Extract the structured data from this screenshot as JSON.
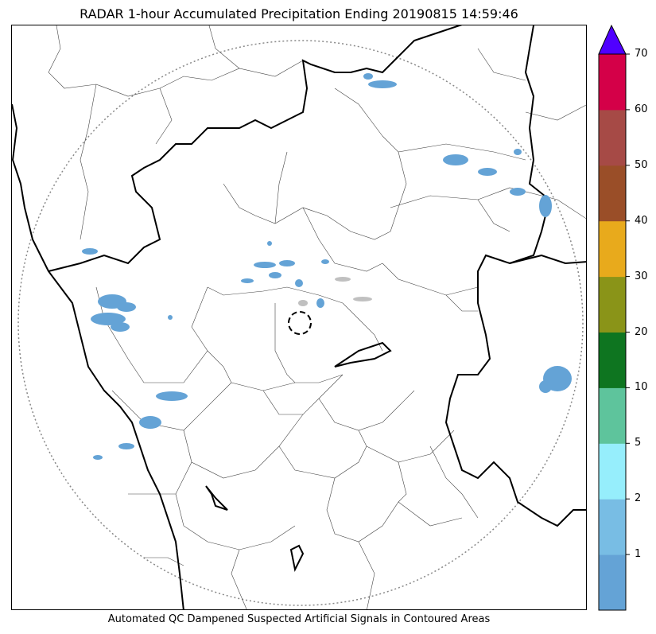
{
  "title": "RADAR 1-hour Accumulated Precipitation Ending 20190815 14:59:46",
  "footer": "Automated QC Dampened Suspected Artificial Signals in Contoured Areas",
  "colorbar": {
    "labels": [
      "1",
      "2",
      "5",
      "10",
      "20",
      "30",
      "40",
      "50",
      "60",
      "70"
    ],
    "colors": [
      "#64a3d6",
      "#78bde4",
      "#96eefc",
      "#5ec49c",
      "#0e7520",
      "#8a9418",
      "#e8aa1c",
      "#9a4e28",
      "#a64a46",
      "#d40048"
    ],
    "extend_color": "#5000ff"
  },
  "map": {
    "range_ring_color": "#888888",
    "precip_color": "#64a3d6",
    "suppressed_color": "#c0c0c0"
  }
}
